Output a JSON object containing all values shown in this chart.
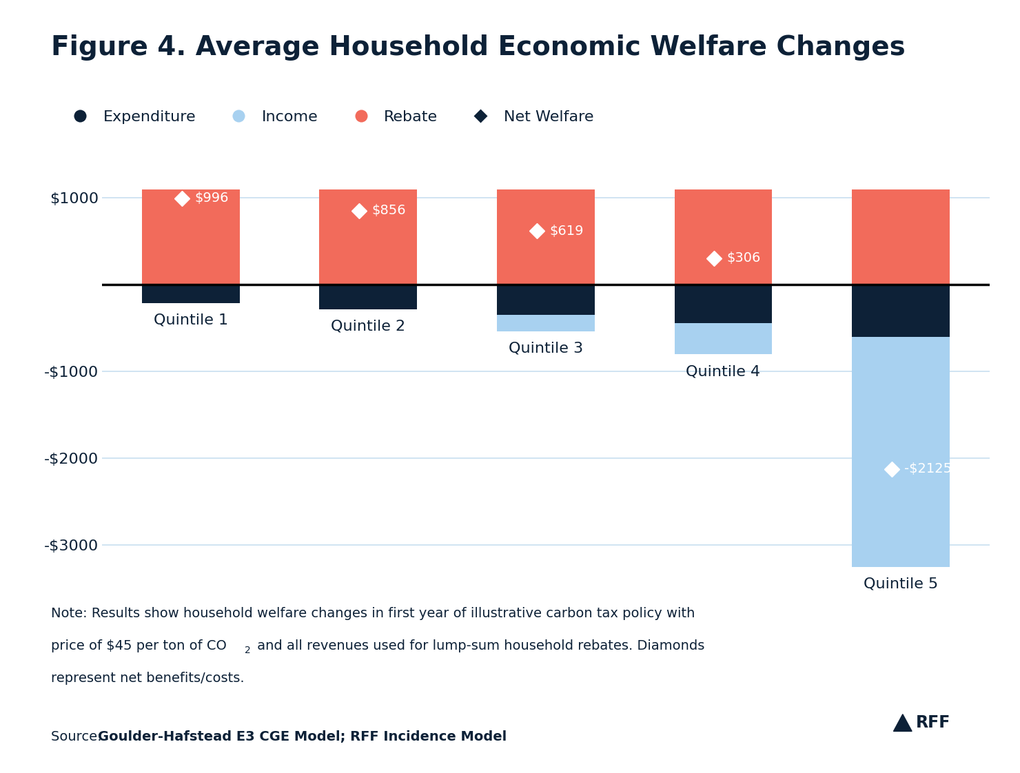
{
  "title": "Figure 4. Average Household Economic Welfare Changes",
  "categories": [
    "Quintile 1",
    "Quintile 2",
    "Quintile 3",
    "Quintile 4",
    "Quintile 5"
  ],
  "rebate": [
    1100,
    1100,
    1100,
    1100,
    1100
  ],
  "expenditure": [
    -210,
    -280,
    -350,
    -440,
    -600
  ],
  "income": [
    0,
    0,
    -185,
    -360,
    -2650
  ],
  "net_welfare": [
    996,
    856,
    619,
    306,
    -2125
  ],
  "net_welfare_labels": [
    "$996",
    "$856",
    "$619",
    "$306",
    "-$2125"
  ],
  "color_rebate": "#f26b5b",
  "color_expenditure": "#0d2137",
  "color_income": "#a8d1f0",
  "background_color": "#ffffff",
  "text_color": "#0d2137",
  "ylim": [
    -3400,
    1500
  ],
  "yticks": [
    -3000,
    -2000,
    -1000,
    1000
  ],
  "ytick_labels": [
    "-$3000",
    "-$2000",
    "-$1000",
    "$1000"
  ],
  "note_text": "Note: Results show household welfare changes in first year of illustrative carbon tax policy with\nprice of $45 per ton of CO₂ and all revenues used for lump-sum household rebates. Diamonds\nrepresent net benefits/costs.",
  "source_prefix": "Source: ",
  "source_bold": "Goulder-Hafstead E3 CGE Model; RFF Incidence Model",
  "bar_width": 0.55,
  "title_fontsize": 28,
  "legend_fontsize": 16,
  "tick_fontsize": 16,
  "label_fontsize": 16,
  "note_fontsize": 14,
  "source_fontsize": 14,
  "zero_line_color": "#000000",
  "grid_color": "#c8dff0",
  "rff_logo_color": "#0d2137"
}
